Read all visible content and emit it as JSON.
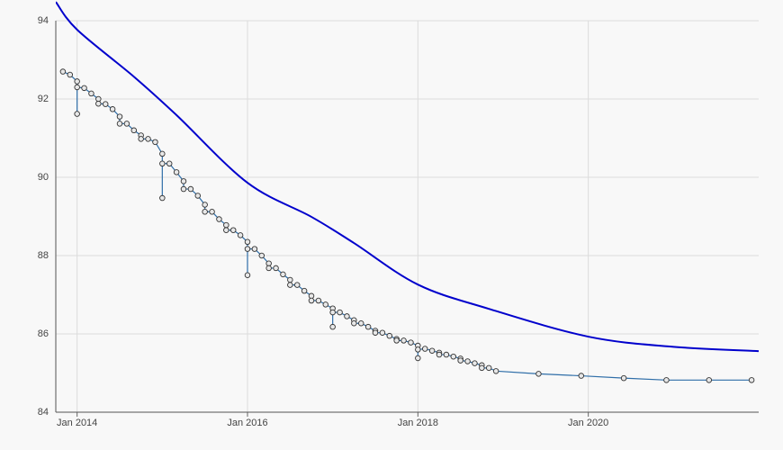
{
  "chart_data": {
    "type": "line",
    "xlim": [
      "2013-10",
      "2022-01"
    ],
    "xticks": [
      {
        "value": "2014-01",
        "label": "Jan 2014"
      },
      {
        "value": "2016-01",
        "label": "Jan 2016"
      },
      {
        "value": "2018-01",
        "label": "Jan 2018"
      },
      {
        "value": "2020-01",
        "label": "Jan 2020"
      }
    ],
    "ylim": [
      84,
      94
    ],
    "yticks": [
      84,
      86,
      88,
      90,
      92,
      94
    ],
    "grid": true,
    "series": [
      {
        "color": "#2f6ea8",
        "markers": true,
        "x": [
          "2013-11",
          "2013-12",
          "2014-01",
          "2014-01",
          "2014-01",
          "2014-02",
          "2014-03",
          "2014-04",
          "2014-04",
          "2014-05",
          "2014-06",
          "2014-07",
          "2014-07",
          "2014-08",
          "2014-09",
          "2014-10",
          "2014-10",
          "2014-11",
          "2014-12",
          "2015-01",
          "2015-01",
          "2015-01",
          "2015-02",
          "2015-03",
          "2015-04",
          "2015-04",
          "2015-05",
          "2015-06",
          "2015-07",
          "2015-07",
          "2015-08",
          "2015-09",
          "2015-10",
          "2015-10",
          "2015-11",
          "2015-12",
          "2016-01",
          "2016-01",
          "2016-01",
          "2016-02",
          "2016-03",
          "2016-04",
          "2016-04",
          "2016-05",
          "2016-06",
          "2016-07",
          "2016-07",
          "2016-08",
          "2016-09",
          "2016-10",
          "2016-10",
          "2016-11",
          "2016-12",
          "2017-01",
          "2017-01",
          "2017-01",
          "2017-02",
          "2017-03",
          "2017-04",
          "2017-04",
          "2017-05",
          "2017-06",
          "2017-07",
          "2017-07",
          "2017-08",
          "2017-09",
          "2017-10",
          "2017-10",
          "2017-11",
          "2017-12",
          "2018-01",
          "2018-01",
          "2018-01",
          "2018-02",
          "2018-03",
          "2018-04",
          "2018-04",
          "2018-05",
          "2018-06",
          "2018-07",
          "2018-07",
          "2018-08",
          "2018-09",
          "2018-10",
          "2018-10",
          "2018-11",
          "2018-12",
          "2019-06",
          "2019-12",
          "2020-06",
          "2020-12",
          "2021-06",
          "2021-12"
        ],
        "values": [
          92.7,
          92.62,
          92.45,
          91.62,
          92.3,
          92.28,
          92.14,
          92.0,
          91.88,
          91.87,
          91.74,
          91.55,
          91.37,
          91.37,
          91.2,
          91.07,
          90.98,
          90.98,
          90.9,
          90.6,
          89.47,
          90.35,
          90.35,
          90.13,
          89.9,
          89.7,
          89.7,
          89.53,
          89.3,
          89.12,
          89.12,
          88.93,
          88.78,
          88.65,
          88.65,
          88.52,
          88.35,
          87.5,
          88.17,
          88.17,
          88.0,
          87.8,
          87.68,
          87.68,
          87.52,
          87.38,
          87.25,
          87.25,
          87.1,
          86.97,
          86.85,
          86.85,
          86.75,
          86.65,
          86.18,
          86.55,
          86.55,
          86.45,
          86.35,
          86.27,
          86.27,
          86.18,
          86.08,
          86.03,
          86.03,
          85.95,
          85.87,
          85.83,
          85.83,
          85.78,
          85.7,
          85.38,
          85.6,
          85.62,
          85.57,
          85.52,
          85.47,
          85.47,
          85.42,
          85.37,
          85.32,
          85.3,
          85.25,
          85.2,
          85.13,
          85.13,
          85.05,
          84.98,
          84.93,
          84.87,
          84.82,
          84.82,
          84.82
        ]
      },
      {
        "color": "#0000cc",
        "markers": false,
        "x": [
          "2013-10",
          "2014-01",
          "2014-09",
          "2015-03",
          "2016-01",
          "2016-10",
          "2017-04",
          "2018-01",
          "2018-11",
          "2020-01",
          "2021-01",
          "2022-01"
        ],
        "values": [
          94.48,
          93.77,
          92.57,
          91.59,
          89.86,
          88.99,
          88.32,
          87.26,
          86.64,
          85.93,
          85.67,
          85.56
        ]
      }
    ]
  }
}
